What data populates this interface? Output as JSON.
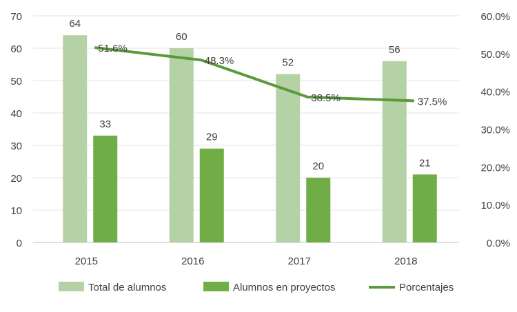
{
  "chart_data": {
    "type": "bar",
    "categories": [
      "2015",
      "2016",
      "2017",
      "2018"
    ],
    "series": [
      {
        "name": "Total de alumnos",
        "kind": "bar",
        "axis": "left",
        "color": "#b5d2a6",
        "values": [
          64,
          60,
          52,
          56
        ]
      },
      {
        "name": "Alumnos en proyectos",
        "kind": "bar",
        "axis": "left",
        "color": "#70ad47",
        "values": [
          33,
          29,
          20,
          21
        ]
      },
      {
        "name": "Porcentajes",
        "kind": "line",
        "axis": "right",
        "color": "#5a9a3d",
        "values": [
          0.516,
          0.483,
          0.385,
          0.375
        ]
      }
    ],
    "bar_value_labels": [
      [
        "64",
        "60",
        "52",
        "56"
      ],
      [
        "33",
        "29",
        "20",
        "21"
      ]
    ],
    "line_value_labels": [
      "51.6%",
      "48.3%",
      "38.5%",
      "37.5%"
    ],
    "y_left": {
      "min": 0,
      "max": 70,
      "ticks": [
        "0",
        "10",
        "20",
        "30",
        "40",
        "50",
        "60",
        "70"
      ]
    },
    "y_right": {
      "min": 0,
      "max": 0.6,
      "ticks": [
        "0.0%",
        "10.0%",
        "20.0%",
        "30.0%",
        "40.0%",
        "50.0%",
        "60.0%"
      ]
    },
    "grid": true,
    "legend_position": "bottom",
    "title": "",
    "xlabel": "",
    "ylabel": ""
  }
}
